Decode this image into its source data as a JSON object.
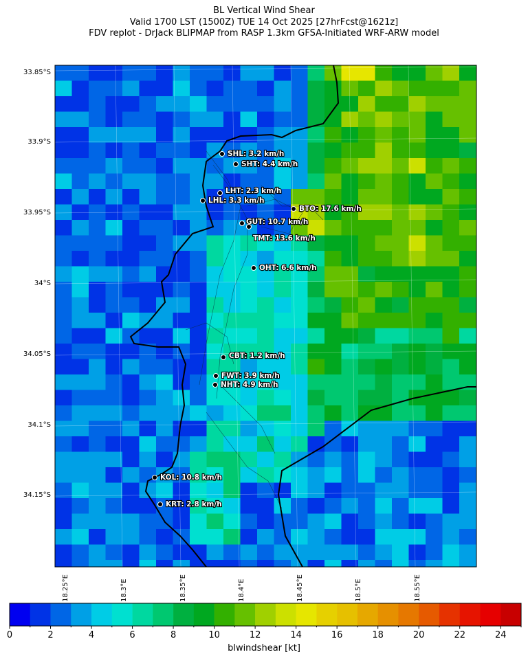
{
  "header": {
    "line1": "BL Vertical Wind Shear",
    "line2": "Valid 1700 LST (1500Z) TUE 14 Oct 2025 [27hrFcst@1621z]",
    "line3": "FDV replot - DrJack BLIPMAP from RASP 1.3km GFSA-Initiated WRF-ARW model"
  },
  "map": {
    "lat_ticks": [
      "33.85°S",
      "33.9°S",
      "33.95°S",
      "34°S",
      "34.05°S",
      "34.1°S",
      "34.15°S"
    ],
    "lon_ticks": [
      "18.25°E",
      "18.3°E",
      "18.35°E",
      "18.4°E",
      "18.45°E",
      "18.5°E",
      "18.55°E"
    ],
    "stations": [
      {
        "code": "SHL",
        "label": "SHL: 3.2 km/h"
      },
      {
        "code": "SHT",
        "label": "SHT: 4.4 km/h"
      },
      {
        "code": "LHT",
        "label": "LHT: 2.3 km/h"
      },
      {
        "code": "LHL",
        "label": "LHL: 3.3 km/h"
      },
      {
        "code": "BTO",
        "label": "BTO: 17.6 km/h"
      },
      {
        "code": "GUT",
        "label": "GUT: 10.7 km/h"
      },
      {
        "code": "TMT",
        "label": "TMT: 13.6 km/h"
      },
      {
        "code": "OHT",
        "label": "OHT: 6.6 km/h"
      },
      {
        "code": "CBT",
        "label": "CBT: 1.2 km/h"
      },
      {
        "code": "FWT",
        "label": "FWT: 3.9 km/h"
      },
      {
        "code": "NHT",
        "label": "NHT: 4.9 km/h"
      },
      {
        "code": "KOL",
        "label": "KOL: 10.8 km/h"
      },
      {
        "code": "KRT",
        "label": "KRT: 2.8 km/h"
      }
    ]
  },
  "colorbar": {
    "label": "blwindshear [kt]",
    "min": 0,
    "max": 25,
    "tick_labels": [
      "0",
      "2",
      "4",
      "6",
      "8",
      "10",
      "12",
      "14",
      "16",
      "18",
      "20",
      "22",
      "24"
    ],
    "colors": [
      "#0000f0",
      "#0033e6",
      "#0066e6",
      "#00a0e6",
      "#00cce6",
      "#00e0d0",
      "#00d8a0",
      "#00c870",
      "#00b040",
      "#00a820",
      "#33b000",
      "#66c000",
      "#a0d000",
      "#cce000",
      "#e6e600",
      "#e6d000",
      "#e6c000",
      "#e6a800",
      "#e69000",
      "#e67800",
      "#e65a00",
      "#e63200",
      "#e61400",
      "#e60000",
      "#c80000"
    ]
  }
}
